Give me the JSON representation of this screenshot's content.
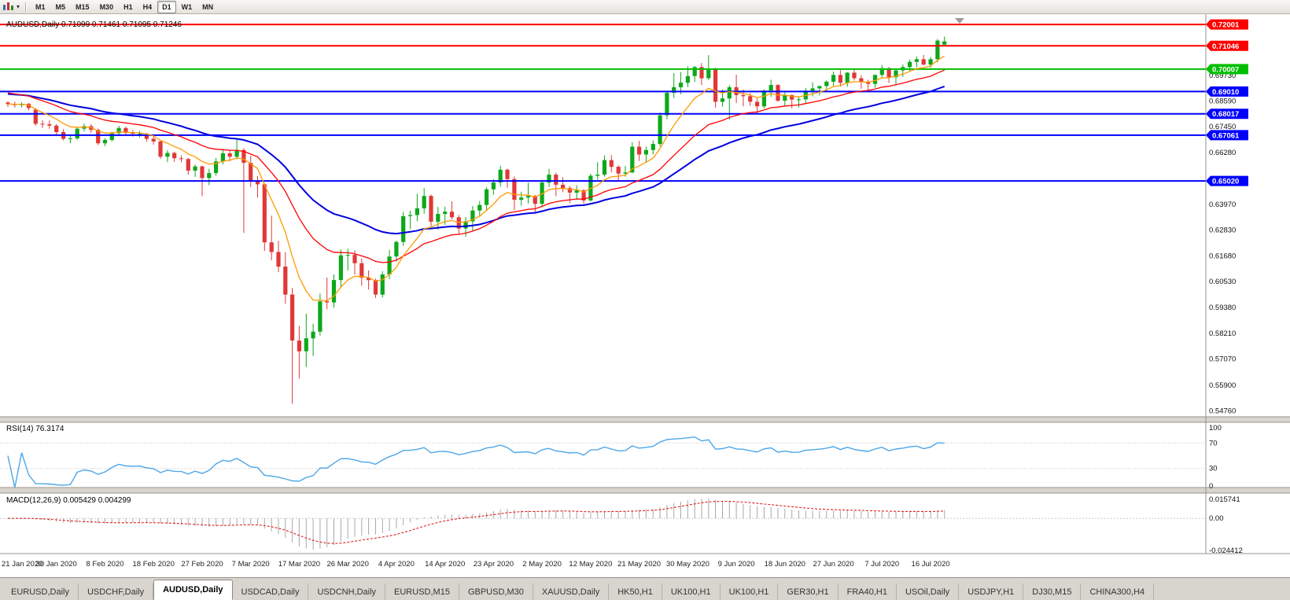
{
  "toolbar": {
    "timeframes": [
      "M1",
      "M5",
      "M15",
      "M30",
      "H1",
      "H4",
      "D1",
      "W1",
      "MN"
    ],
    "active_timeframe": "D1"
  },
  "chart_data": {
    "type": "candlestick",
    "symbol": "AUDUSD",
    "timeframe": "Daily",
    "readout": "AUDUSD,Daily 0.71099 0.71461 0.71095 0.71246",
    "current_ohlc": {
      "open": 0.71099,
      "high": 0.71461,
      "low": 0.71095,
      "close": 0.71246
    },
    "colors": {
      "up": "#0CA81B",
      "down": "#E03838"
    },
    "y_axis": {
      "top": 0.7232,
      "bottom": 0.545,
      "labels": [
        "0.69730",
        "0.68590",
        "0.67450",
        "0.66280",
        "0.63970",
        "0.62830",
        "0.61680",
        "0.60530",
        "0.59380",
        "0.58210",
        "0.57070",
        "0.55900",
        "0.54760"
      ]
    },
    "hlines": [
      {
        "value": 0.72001,
        "label": "0.72001",
        "color": "#FF0000"
      },
      {
        "value": 0.71046,
        "label": "0.71046",
        "color": "#FF0000"
      },
      {
        "value": 0.70007,
        "label": "0.70007",
        "color": "#00BF00"
      },
      {
        "value": 0.6901,
        "label": "0.69010",
        "color": "#0000FF"
      },
      {
        "value": 0.68017,
        "label": "0.68017",
        "color": "#0000FF"
      },
      {
        "value": 0.67061,
        "label": "0.67061",
        "color": "#0000FF"
      },
      {
        "value": 0.6502,
        "label": "0.65020",
        "color": "#0000FF"
      }
    ],
    "moving_averages": [
      {
        "name": "ma-slow-line",
        "color": "#0000E0",
        "period": 38,
        "seed": 0.689,
        "width": 2
      },
      {
        "name": "ma-mid-line",
        "color": "#FF0000",
        "period": 21,
        "seed": 0.6895,
        "width": 1.3
      },
      {
        "name": "ma-fast-line",
        "color": "#FF9900",
        "period": 8,
        "seed": null,
        "width": 1.3
      }
    ],
    "x_labels": [
      {
        "index": 0,
        "label": "21 Jan 2020"
      },
      {
        "index": 7,
        "label": "30 Jan 2020"
      },
      {
        "index": 14,
        "label": "8 Feb 2020"
      },
      {
        "index": 21,
        "label": "18 Feb 2020"
      },
      {
        "index": 28,
        "label": "27 Feb 2020"
      },
      {
        "index": 35,
        "label": "7 Mar 2020"
      },
      {
        "index": 42,
        "label": "17 Mar 2020"
      },
      {
        "index": 49,
        "label": "26 Mar 2020"
      },
      {
        "index": 56,
        "label": "4 Apr 2020"
      },
      {
        "index": 63,
        "label": "14 Apr 2020"
      },
      {
        "index": 70,
        "label": "23 Apr 2020"
      },
      {
        "index": 77,
        "label": "2 May 2020"
      },
      {
        "index": 84,
        "label": "12 May 2020"
      },
      {
        "index": 91,
        "label": "21 May 2020"
      },
      {
        "index": 98,
        "label": "30 May 2020"
      },
      {
        "index": 105,
        "label": "9 Jun 2020"
      },
      {
        "index": 112,
        "label": "18 Jun 2020"
      },
      {
        "index": 119,
        "label": "27 Jun 2020"
      },
      {
        "index": 126,
        "label": "7 Jul 2020"
      },
      {
        "index": 133,
        "label": "16 Jul 2020"
      }
    ],
    "candles": [
      [
        0.6852,
        0.6858,
        0.6832,
        0.6845
      ],
      [
        0.6845,
        0.6856,
        0.6829,
        0.684
      ],
      [
        0.684,
        0.6853,
        0.683,
        0.6846
      ],
      [
        0.6846,
        0.685,
        0.6817,
        0.6827
      ],
      [
        0.682,
        0.6828,
        0.6748,
        0.6757
      ],
      [
        0.6757,
        0.6773,
        0.6738,
        0.6755
      ],
      [
        0.6755,
        0.6772,
        0.6735,
        0.6749
      ],
      [
        0.6749,
        0.6756,
        0.6709,
        0.672
      ],
      [
        0.672,
        0.6733,
        0.6683,
        0.669
      ],
      [
        0.669,
        0.6707,
        0.667,
        0.6692
      ],
      [
        0.6692,
        0.6739,
        0.6685,
        0.6735
      ],
      [
        0.6735,
        0.6758,
        0.6723,
        0.6746
      ],
      [
        0.6746,
        0.6755,
        0.6717,
        0.673
      ],
      [
        0.673,
        0.6736,
        0.6662,
        0.667
      ],
      [
        0.667,
        0.6693,
        0.6657,
        0.6685
      ],
      [
        0.6685,
        0.6722,
        0.6677,
        0.6715
      ],
      [
        0.6715,
        0.6748,
        0.6706,
        0.6738
      ],
      [
        0.6738,
        0.6744,
        0.6707,
        0.6716
      ],
      [
        0.6716,
        0.6729,
        0.67,
        0.6712
      ],
      [
        0.6712,
        0.6725,
        0.6696,
        0.6713
      ],
      [
        0.6713,
        0.6716,
        0.6677,
        0.669
      ],
      [
        0.669,
        0.6701,
        0.6664,
        0.6678
      ],
      [
        0.6678,
        0.6681,
        0.66,
        0.661
      ],
      [
        0.661,
        0.6639,
        0.6586,
        0.6627
      ],
      [
        0.6627,
        0.6632,
        0.6587,
        0.6603
      ],
      [
        0.6603,
        0.6616,
        0.6585,
        0.66
      ],
      [
        0.66,
        0.6604,
        0.653,
        0.6548
      ],
      [
        0.6548,
        0.6575,
        0.652,
        0.6567
      ],
      [
        0.6567,
        0.6571,
        0.6434,
        0.6515
      ],
      [
        0.6515,
        0.6556,
        0.6483,
        0.6537
      ],
      [
        0.6537,
        0.6605,
        0.6525,
        0.6589
      ],
      [
        0.6589,
        0.6645,
        0.6576,
        0.6625
      ],
      [
        0.6625,
        0.6639,
        0.659,
        0.661
      ],
      [
        0.661,
        0.6686,
        0.6598,
        0.664
      ],
      [
        0.664,
        0.6648,
        0.627,
        0.6583
      ],
      [
        0.6583,
        0.6615,
        0.6475,
        0.6502
      ],
      [
        0.6502,
        0.6524,
        0.6428,
        0.6487
      ],
      [
        0.6487,
        0.6492,
        0.619,
        0.6228
      ],
      [
        0.6228,
        0.6347,
        0.6148,
        0.6185
      ],
      [
        0.6185,
        0.6235,
        0.6095,
        0.612
      ],
      [
        0.612,
        0.6184,
        0.5954,
        0.5995
      ],
      [
        0.5995,
        0.6025,
        0.5508,
        0.579
      ],
      [
        0.579,
        0.5856,
        0.562,
        0.5742
      ],
      [
        0.5742,
        0.591,
        0.5672,
        0.58
      ],
      [
        0.58,
        0.5865,
        0.5721,
        0.583
      ],
      [
        0.583,
        0.6,
        0.5812,
        0.5965
      ],
      [
        0.5965,
        0.6071,
        0.593,
        0.596
      ],
      [
        0.596,
        0.6085,
        0.5937,
        0.606
      ],
      [
        0.606,
        0.6197,
        0.6029,
        0.617
      ],
      [
        0.617,
        0.62,
        0.6102,
        0.6172
      ],
      [
        0.6172,
        0.6192,
        0.6085,
        0.6135
      ],
      [
        0.6135,
        0.6156,
        0.6034,
        0.607
      ],
      [
        0.607,
        0.6103,
        0.6017,
        0.606
      ],
      [
        0.606,
        0.6066,
        0.598,
        0.5995
      ],
      [
        0.5995,
        0.6099,
        0.5983,
        0.6085
      ],
      [
        0.6085,
        0.6194,
        0.6064,
        0.6165
      ],
      [
        0.6165,
        0.6235,
        0.6143,
        0.623
      ],
      [
        0.623,
        0.6364,
        0.6213,
        0.6345
      ],
      [
        0.6345,
        0.6369,
        0.6287,
        0.635
      ],
      [
        0.635,
        0.6445,
        0.6322,
        0.638
      ],
      [
        0.638,
        0.647,
        0.6356,
        0.6435
      ],
      [
        0.6435,
        0.6442,
        0.6298,
        0.632
      ],
      [
        0.632,
        0.6386,
        0.6285,
        0.6355
      ],
      [
        0.6355,
        0.6387,
        0.6306,
        0.6365
      ],
      [
        0.6365,
        0.6411,
        0.6331,
        0.634
      ],
      [
        0.634,
        0.635,
        0.6264,
        0.629
      ],
      [
        0.629,
        0.6341,
        0.6253,
        0.6322
      ],
      [
        0.6322,
        0.639,
        0.6277,
        0.637
      ],
      [
        0.637,
        0.6413,
        0.6346,
        0.6395
      ],
      [
        0.6395,
        0.6475,
        0.6368,
        0.6465
      ],
      [
        0.6465,
        0.651,
        0.644,
        0.6495
      ],
      [
        0.6495,
        0.657,
        0.6477,
        0.6552
      ],
      [
        0.6552,
        0.6557,
        0.6472,
        0.651
      ],
      [
        0.651,
        0.6522,
        0.6372,
        0.6418
      ],
      [
        0.6418,
        0.6454,
        0.6391,
        0.6428
      ],
      [
        0.6428,
        0.6494,
        0.6402,
        0.6435
      ],
      [
        0.6435,
        0.644,
        0.6359,
        0.64
      ],
      [
        0.64,
        0.6508,
        0.6388,
        0.6495
      ],
      [
        0.6495,
        0.6556,
        0.6475,
        0.653
      ],
      [
        0.653,
        0.6539,
        0.6434,
        0.6485
      ],
      [
        0.6485,
        0.6518,
        0.6452,
        0.647
      ],
      [
        0.647,
        0.6479,
        0.6403,
        0.645
      ],
      [
        0.645,
        0.6483,
        0.6417,
        0.646
      ],
      [
        0.646,
        0.6466,
        0.6399,
        0.6415
      ],
      [
        0.6415,
        0.6534,
        0.641,
        0.6525
      ],
      [
        0.6525,
        0.6585,
        0.6508,
        0.653
      ],
      [
        0.653,
        0.6616,
        0.6521,
        0.6595
      ],
      [
        0.6595,
        0.6617,
        0.6541,
        0.6565
      ],
      [
        0.6565,
        0.6572,
        0.6504,
        0.6535
      ],
      [
        0.6535,
        0.6568,
        0.6521,
        0.654
      ],
      [
        0.654,
        0.6675,
        0.6537,
        0.6655
      ],
      [
        0.6655,
        0.6681,
        0.6591,
        0.662
      ],
      [
        0.662,
        0.6655,
        0.6585,
        0.664
      ],
      [
        0.664,
        0.6683,
        0.6621,
        0.6667
      ],
      [
        0.6667,
        0.6807,
        0.6656,
        0.6795
      ],
      [
        0.6795,
        0.69,
        0.6777,
        0.6895
      ],
      [
        0.6895,
        0.6983,
        0.6872,
        0.692
      ],
      [
        0.692,
        0.6987,
        0.6889,
        0.694
      ],
      [
        0.694,
        0.7013,
        0.692,
        0.697
      ],
      [
        0.697,
        0.7015,
        0.6944,
        0.701
      ],
      [
        0.701,
        0.7028,
        0.693,
        0.696
      ],
      [
        0.696,
        0.7063,
        0.6952,
        0.7
      ],
      [
        0.7,
        0.7007,
        0.6829,
        0.6855
      ],
      [
        0.6855,
        0.691,
        0.6833,
        0.687
      ],
      [
        0.687,
        0.693,
        0.6776,
        0.692
      ],
      [
        0.692,
        0.6976,
        0.685,
        0.6885
      ],
      [
        0.6885,
        0.691,
        0.6835,
        0.688
      ],
      [
        0.688,
        0.6894,
        0.6837,
        0.6855
      ],
      [
        0.6855,
        0.687,
        0.68,
        0.6835
      ],
      [
        0.6835,
        0.6911,
        0.6825,
        0.6905
      ],
      [
        0.6905,
        0.6954,
        0.6877,
        0.693
      ],
      [
        0.693,
        0.6934,
        0.6856,
        0.686
      ],
      [
        0.686,
        0.6904,
        0.6833,
        0.6885
      ],
      [
        0.6885,
        0.6889,
        0.6826,
        0.6865
      ],
      [
        0.6865,
        0.6877,
        0.683,
        0.6866
      ],
      [
        0.6866,
        0.6917,
        0.6845,
        0.6905
      ],
      [
        0.6905,
        0.6942,
        0.6879,
        0.6915
      ],
      [
        0.6915,
        0.6928,
        0.6883,
        0.6925
      ],
      [
        0.6925,
        0.695,
        0.6902,
        0.6945
      ],
      [
        0.6945,
        0.699,
        0.6921,
        0.6975
      ],
      [
        0.6975,
        0.6996,
        0.6923,
        0.694
      ],
      [
        0.694,
        0.6988,
        0.6922,
        0.6985
      ],
      [
        0.6985,
        0.6999,
        0.695,
        0.696
      ],
      [
        0.696,
        0.6973,
        0.6913,
        0.6945
      ],
      [
        0.6945,
        0.6954,
        0.6901,
        0.6935
      ],
      [
        0.6935,
        0.6977,
        0.6917,
        0.6975
      ],
      [
        0.6975,
        0.7019,
        0.6962,
        0.7005
      ],
      [
        0.7005,
        0.701,
        0.6939,
        0.6965
      ],
      [
        0.6965,
        0.6998,
        0.6932,
        0.6995
      ],
      [
        0.6995,
        0.7022,
        0.6966,
        0.701
      ],
      [
        0.701,
        0.7044,
        0.699,
        0.7033
      ],
      [
        0.7033,
        0.7058,
        0.7009,
        0.7045
      ],
      [
        0.7045,
        0.7064,
        0.7017,
        0.7021
      ],
      [
        0.7021,
        0.7056,
        0.7006,
        0.7045
      ],
      [
        0.7045,
        0.7135,
        0.7031,
        0.7128
      ],
      [
        0.71099,
        0.71461,
        0.71095,
        0.71246
      ]
    ],
    "indicators": {
      "rsi": {
        "label": "RSI(14) 76.3174",
        "period": 14,
        "value": 76.3174,
        "levels": [
          100,
          70,
          30,
          0
        ],
        "line_color": "#4DA6E8"
      },
      "macd": {
        "label": "MACD(12,26,9) 0.005429 0.004299",
        "fast": 12,
        "slow": 26,
        "signal": 9,
        "values": [
          0.005429,
          0.004299
        ],
        "axis_labels": {
          "top": "0.015741",
          "zero": "0.00",
          "bottom": "-0.024412"
        },
        "histogram_color": "#A8A8A8",
        "signal_color": "#E02020"
      }
    }
  },
  "tabs": {
    "items": [
      "EURUSD,Daily",
      "USDCHF,Daily",
      "AUDUSD,Daily",
      "USDCAD,Daily",
      "USDCNH,Daily",
      "EURUSD,M15",
      "GBPUSD,M30",
      "XAUUSD,Daily",
      "HK50,H1",
      "UK100,H1",
      "UK100,H1",
      "GER30,H1",
      "FRA40,H1",
      "USOil,Daily",
      "USDJPY,H1",
      "DJ30,M15",
      "CHINA300,H4"
    ],
    "active_index": 2
  }
}
